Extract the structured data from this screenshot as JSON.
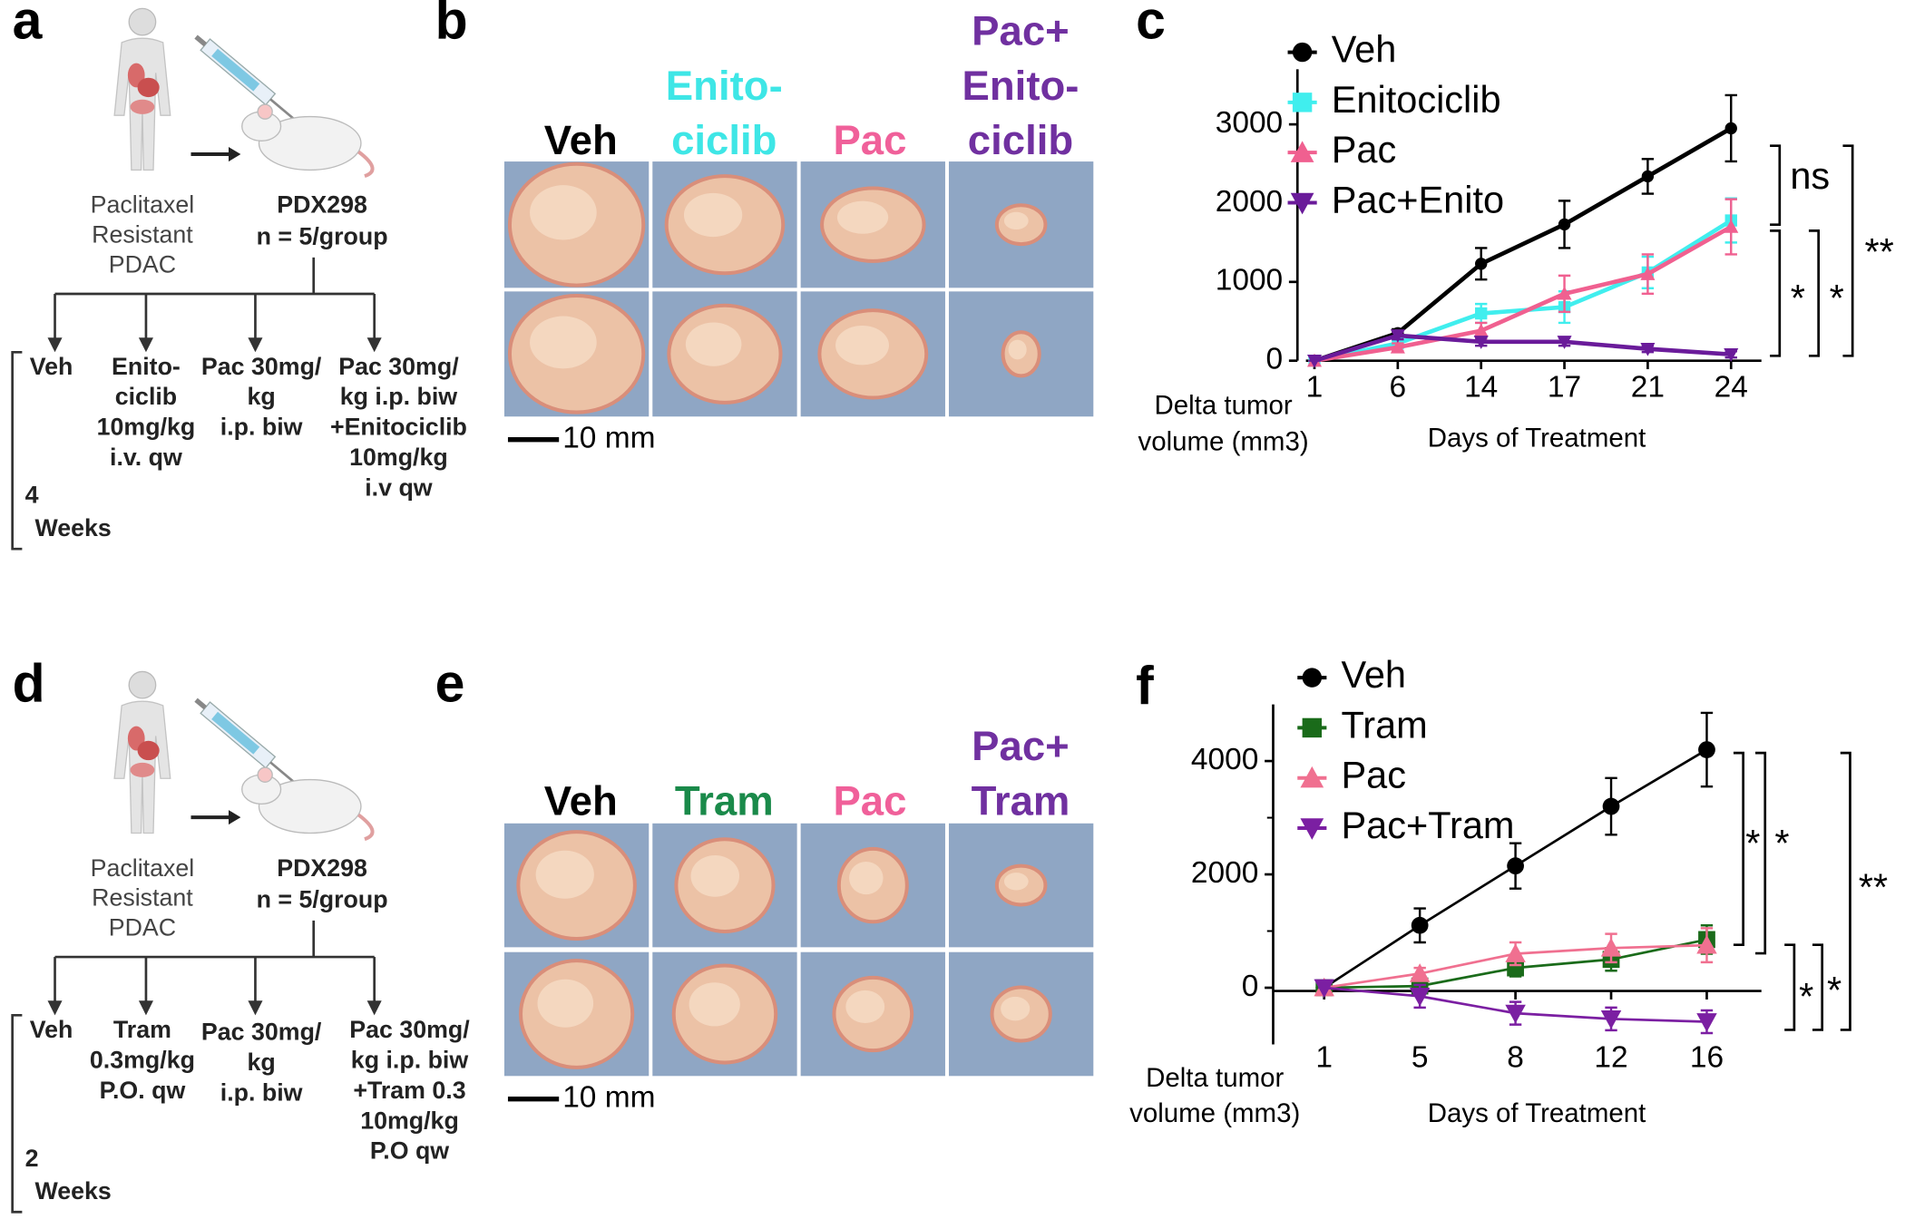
{
  "panels": [
    {
      "label": "a",
      "source": [
        "Paclitaxel",
        "Resistant",
        "PDAC"
      ],
      "model": [
        "PDX298",
        "n = 5/group"
      ],
      "groups": [
        [
          "Veh"
        ],
        [
          "Enito-",
          "ciclib",
          "10mg/kg",
          "i.v. qw"
        ],
        [
          "Pac 30mg/",
          "kg",
          "i.p. biw"
        ],
        [
          "Pac 30mg/",
          "kg i.p. biw",
          "+Enitociclib",
          "10mg/kg",
          "i.v qw"
        ]
      ],
      "duration": [
        "4",
        "Weeks"
      ]
    },
    {
      "label": "b",
      "headers": [
        {
          "lines": [
            "Veh"
          ],
          "color": "#000000"
        },
        {
          "lines": [
            "Enito-",
            "ciclib"
          ],
          "color": "#3ee6e6"
        },
        {
          "lines": [
            "Pac"
          ],
          "color": "#f0609a"
        },
        {
          "lines": [
            "Pac+",
            "Enito-",
            "ciclib"
          ],
          "color": "#7030a0"
        }
      ],
      "scale": "10 mm"
    },
    {
      "label": "d",
      "source": [
        "Paclitaxel",
        "Resistant",
        "PDAC"
      ],
      "model": [
        "PDX298",
        "n = 5/group"
      ],
      "groups": [
        [
          "Veh"
        ],
        [
          "Tram",
          "0.3mg/kg",
          "P.O. qw"
        ],
        [
          "Pac 30mg/",
          "kg",
          "i.p. biw"
        ],
        [
          "Pac 30mg/",
          "kg i.p. biw",
          "+Tram 0.3",
          "10mg/kg",
          "P.O qw"
        ]
      ],
      "duration": [
        "2",
        "Weeks"
      ]
    },
    {
      "label": "e",
      "headers": [
        {
          "lines": [
            "Veh"
          ],
          "color": "#000000"
        },
        {
          "lines": [
            "Tram"
          ],
          "color": "#1a8a4a"
        },
        {
          "lines": [
            "Pac"
          ],
          "color": "#f0609a"
        },
        {
          "lines": [
            "Pac+",
            "Tram"
          ],
          "color": "#7030a0"
        }
      ],
      "scale": "10 mm"
    }
  ],
  "chart_data": [
    {
      "type": "line",
      "label": "c",
      "xlabel": "Days of Treatment",
      "ylabel": [
        "Delta tumor",
        "volume (mm3)"
      ],
      "categories": [
        "1",
        "6",
        "14",
        "17",
        "21",
        "24"
      ],
      "ylim": [
        0,
        3700
      ],
      "yticks": [
        0,
        1000,
        2000,
        3000
      ],
      "series": [
        {
          "name": "Veh",
          "color": "#000000",
          "marker": "circle",
          "values": [
            0,
            350,
            1230,
            1730,
            2340,
            2950
          ],
          "errors": [
            0,
            50,
            200,
            300,
            220,
            420
          ]
        },
        {
          "name": "Enitociclib",
          "color": "#40eeee",
          "marker": "square",
          "values": [
            0,
            220,
            600,
            680,
            1120,
            1780
          ],
          "errors": [
            0,
            60,
            120,
            200,
            200,
            280
          ]
        },
        {
          "name": "Pac",
          "color": "#f06090",
          "marker": "triangle",
          "values": [
            0,
            170,
            380,
            850,
            1100,
            1700
          ],
          "errors": [
            0,
            50,
            100,
            230,
            250,
            350
          ]
        },
        {
          "name": "Pac+Enito",
          "color": "#6a1b9a",
          "marker": "triangle-down",
          "values": [
            0,
            320,
            240,
            240,
            150,
            80
          ],
          "errors": [
            0,
            50,
            50,
            50,
            40,
            40
          ]
        }
      ],
      "annotations": [
        "ns",
        "*",
        "*",
        "**"
      ]
    },
    {
      "type": "line",
      "label": "f",
      "xlabel": "Days of Treatment",
      "ylabel": [
        "Delta tumor",
        "volume (mm3)"
      ],
      "categories": [
        "1",
        "5",
        "8",
        "12",
        "16"
      ],
      "ylim": [
        -1000,
        5000
      ],
      "yticks": [
        0,
        2000,
        4000
      ],
      "yminor": [
        1000,
        3000
      ],
      "series": [
        {
          "name": "Veh",
          "color": "#000000",
          "marker": "circle",
          "values": [
            0,
            1100,
            2150,
            3200,
            4200
          ],
          "errors": [
            0,
            300,
            400,
            500,
            650
          ]
        },
        {
          "name": "Tram",
          "color": "#1a6b1a",
          "marker": "square",
          "values": [
            0,
            30,
            350,
            500,
            850
          ],
          "errors": [
            0,
            50,
            150,
            200,
            250
          ]
        },
        {
          "name": "Pac",
          "color": "#f07090",
          "marker": "triangle",
          "values": [
            0,
            250,
            600,
            700,
            750
          ],
          "errors": [
            0,
            100,
            200,
            250,
            300
          ]
        },
        {
          "name": "Pac+Tram",
          "color": "#7b1fa2",
          "marker": "triangle-down",
          "values": [
            0,
            -150,
            -450,
            -550,
            -600
          ],
          "errors": [
            0,
            200,
            200,
            200,
            200
          ]
        }
      ],
      "annotations": [
        "*",
        "*",
        "**",
        "*",
        "*"
      ]
    }
  ]
}
